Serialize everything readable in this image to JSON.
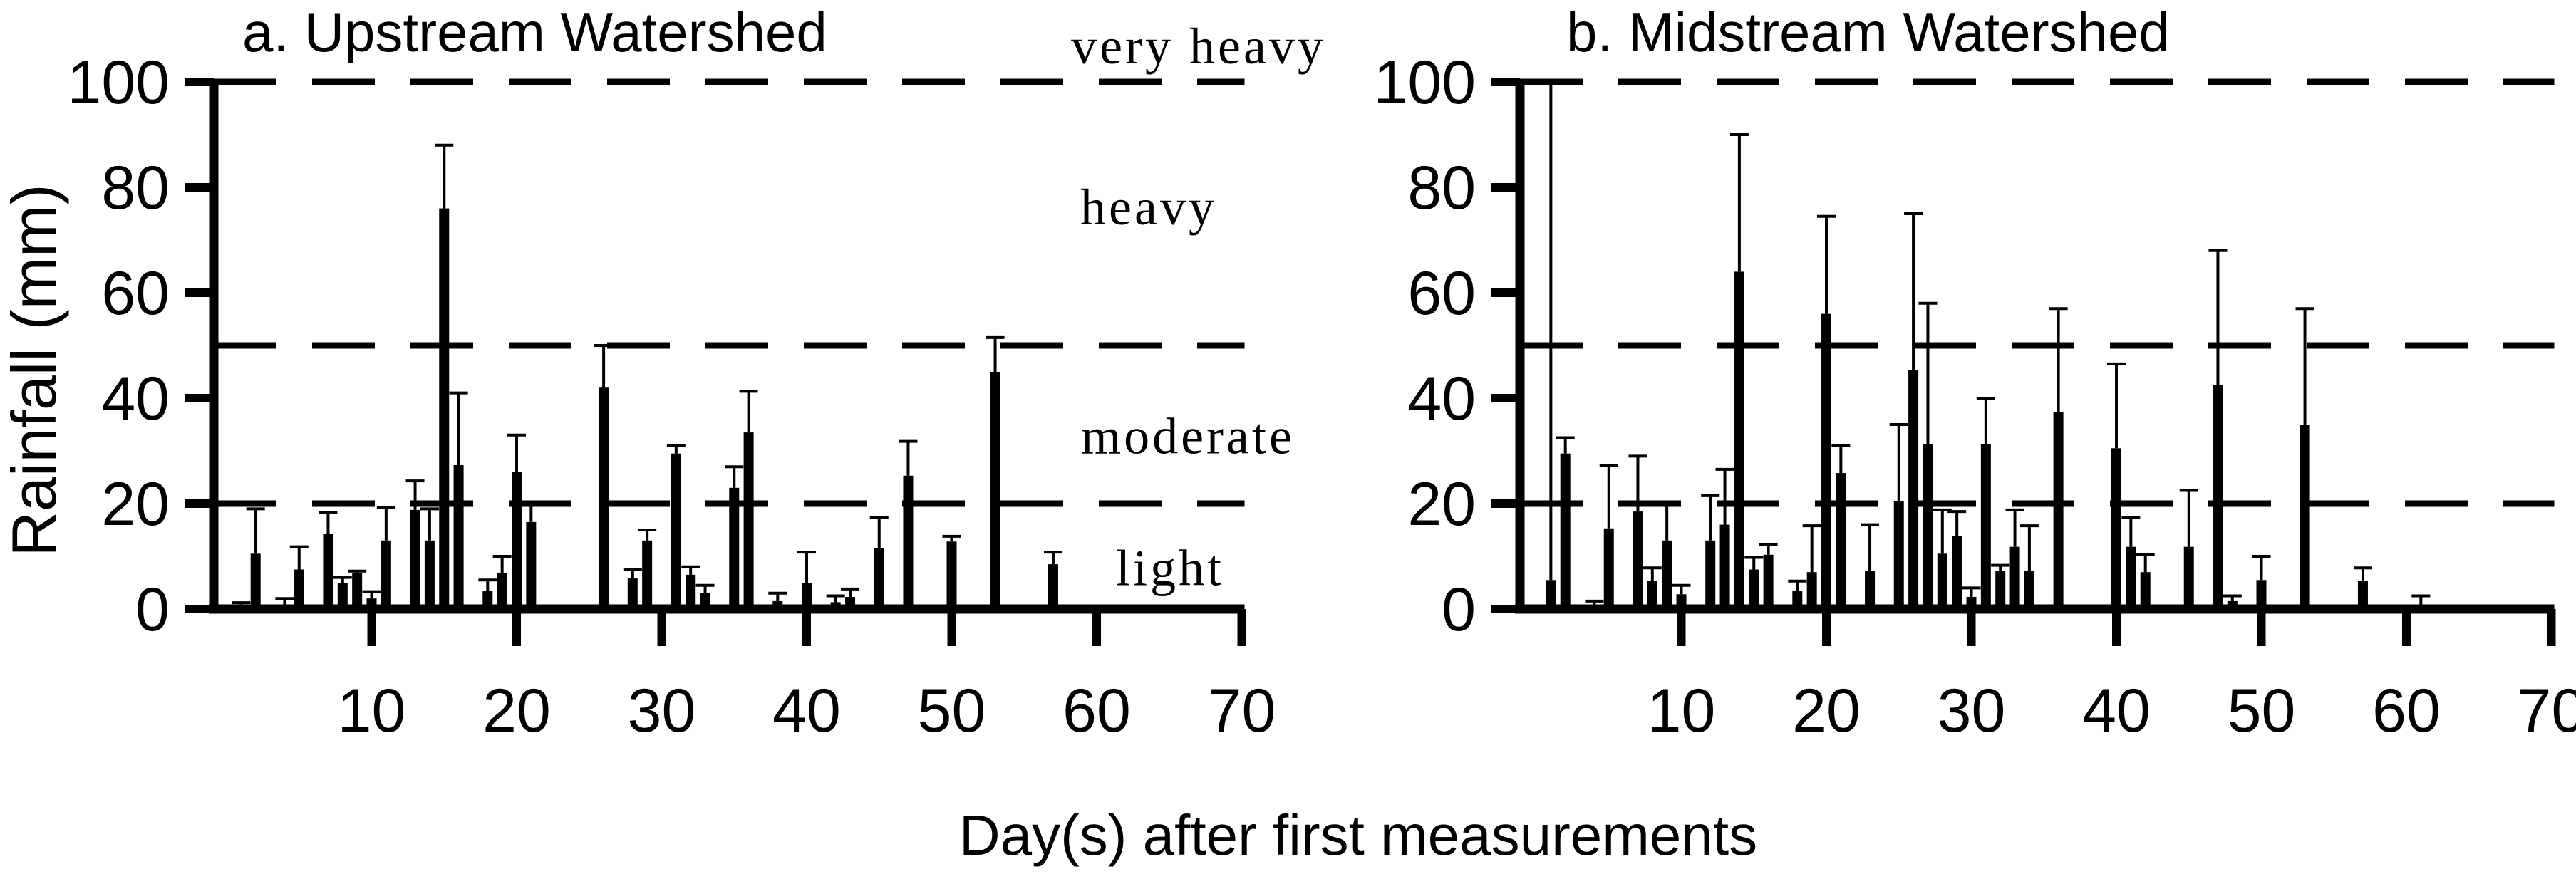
{
  "figure": {
    "y_axis_label": "Rainfall (mm)",
    "x_axis_label": "Day(s) after first measurements",
    "ink_color": "#000000",
    "background_color": "#ffffff",
    "intensity_labels": [
      {
        "text": "very heavy",
        "mm": 103.5
      },
      {
        "text": "heavy",
        "mm": 73
      },
      {
        "text": "moderate",
        "mm": 29.5
      },
      {
        "text": "light",
        "mm": 4.5
      }
    ]
  },
  "chart_data": [
    {
      "type": "bar",
      "panel": "a",
      "title": "a. Upstream Watershed",
      "ylabel": "Rainfall (mm)",
      "xlabel": "Day(s) after first measurements",
      "ylim": [
        0,
        100
      ],
      "xlim": [
        0,
        71
      ],
      "grid": false,
      "legend": "none",
      "y_ticks": [
        0,
        20,
        40,
        60,
        80,
        100
      ],
      "x_ticks": [
        10,
        20,
        30,
        40,
        50,
        60,
        70
      ],
      "threshold_lines_mm": [
        20,
        50,
        100
      ],
      "bars": [
        {
          "day": 1,
          "value": 0.5,
          "err_top": 1.2
        },
        {
          "day": 2,
          "value": 10.5,
          "err_top": 19
        },
        {
          "day": 4,
          "value": 0.8,
          "err_top": 2
        },
        {
          "day": 5,
          "value": 7.5,
          "err_top": 11.8
        },
        {
          "day": 7,
          "value": 14.3,
          "err_top": 18.3
        },
        {
          "day": 8,
          "value": 5,
          "err_top": 6
        },
        {
          "day": 9,
          "value": 6.8,
          "err_top": 7.2
        },
        {
          "day": 10,
          "value": 2,
          "err_top": 3.3
        },
        {
          "day": 11,
          "value": 13,
          "err_top": 19.3
        },
        {
          "day": 13,
          "value": 18.8,
          "err_top": 24.3
        },
        {
          "day": 14,
          "value": 13,
          "err_top": 19
        },
        {
          "day": 15,
          "value": 76,
          "err_top": 88
        },
        {
          "day": 16,
          "value": 27.3,
          "err_top": 41
        },
        {
          "day": 18,
          "value": 3.5,
          "err_top": 5.5
        },
        {
          "day": 19,
          "value": 6.8,
          "err_top": 10
        },
        {
          "day": 20,
          "value": 26,
          "err_top": 33
        },
        {
          "day": 21,
          "value": 16.5,
          "err_top": 20
        },
        {
          "day": 26,
          "value": 42,
          "err_top": 50
        },
        {
          "day": 28,
          "value": 5.8,
          "err_top": 7.5
        },
        {
          "day": 29,
          "value": 13,
          "err_top": 15
        },
        {
          "day": 31,
          "value": 29.5,
          "err_top": 31
        },
        {
          "day": 32,
          "value": 6.5,
          "err_top": 8
        },
        {
          "day": 33,
          "value": 3,
          "err_top": 4.5
        },
        {
          "day": 35,
          "value": 23,
          "err_top": 27
        },
        {
          "day": 36,
          "value": 33.5,
          "err_top": 41.3
        },
        {
          "day": 38,
          "value": 1.5,
          "err_top": 3
        },
        {
          "day": 40,
          "value": 5,
          "err_top": 10.8
        },
        {
          "day": 42,
          "value": 1.3,
          "err_top": 2.5
        },
        {
          "day": 43,
          "value": 2.3,
          "err_top": 3.8
        },
        {
          "day": 45,
          "value": 11.5,
          "err_top": 17.3
        },
        {
          "day": 47,
          "value": 25.3,
          "err_top": 31.8
        },
        {
          "day": 50,
          "value": 12.8,
          "err_top": 13.8
        },
        {
          "day": 53,
          "value": 45,
          "err_top": 51.5
        },
        {
          "day": 57,
          "value": 8.5,
          "err_top": 10.8
        }
      ]
    },
    {
      "type": "bar",
      "panel": "b",
      "title": "b. Midstream Watershed",
      "ylabel": "Rainfall (mm)",
      "xlabel": "Day(s) after first measurements",
      "ylim": [
        0,
        100
      ],
      "xlim": [
        0,
        71
      ],
      "grid": false,
      "legend": "none",
      "y_ticks": [
        0,
        20,
        40,
        60,
        80,
        100
      ],
      "x_ticks": [
        10,
        20,
        30,
        40,
        50,
        60,
        70
      ],
      "threshold_lines_mm": [
        20,
        50,
        100
      ],
      "bars": [
        {
          "day": 1,
          "value": 5.5,
          "err_top": 100
        },
        {
          "day": 2,
          "value": 29.5,
          "err_top": 32.5
        },
        {
          "day": 4,
          "value": 0.4,
          "err_top": 1.5
        },
        {
          "day": 5,
          "value": 15.3,
          "err_top": 27.3
        },
        {
          "day": 7,
          "value": 18.5,
          "err_top": 29
        },
        {
          "day": 8,
          "value": 5.3,
          "err_top": 7.8
        },
        {
          "day": 9,
          "value": 13,
          "err_top": 20.3
        },
        {
          "day": 10,
          "value": 2.8,
          "err_top": 4.5
        },
        {
          "day": 12,
          "value": 13,
          "err_top": 21.5
        },
        {
          "day": 13,
          "value": 16,
          "err_top": 26.5
        },
        {
          "day": 14,
          "value": 64,
          "err_top": 90
        },
        {
          "day": 15,
          "value": 7.5,
          "err_top": 9.8
        },
        {
          "day": 16,
          "value": 10.3,
          "err_top": 12.3
        },
        {
          "day": 18,
          "value": 3.5,
          "err_top": 5.3
        },
        {
          "day": 19,
          "value": 7,
          "err_top": 15.8
        },
        {
          "day": 20,
          "value": 56,
          "err_top": 74.5
        },
        {
          "day": 21,
          "value": 25.8,
          "err_top": 31
        },
        {
          "day": 23,
          "value": 7.3,
          "err_top": 16
        },
        {
          "day": 25,
          "value": 20.5,
          "err_top": 35
        },
        {
          "day": 26,
          "value": 45.3,
          "err_top": 75
        },
        {
          "day": 27,
          "value": 31.3,
          "err_top": 58
        },
        {
          "day": 28,
          "value": 10.5,
          "err_top": 18.8
        },
        {
          "day": 29,
          "value": 13.8,
          "err_top": 18.5
        },
        {
          "day": 30,
          "value": 2.3,
          "err_top": 4
        },
        {
          "day": 31,
          "value": 31.3,
          "err_top": 40
        },
        {
          "day": 32,
          "value": 7.3,
          "err_top": 8.3
        },
        {
          "day": 33,
          "value": 11.8,
          "err_top": 18.8
        },
        {
          "day": 34,
          "value": 7.3,
          "err_top": 15.8
        },
        {
          "day": 36,
          "value": 37.3,
          "err_top": 57
        },
        {
          "day": 40,
          "value": 30.5,
          "err_top": 46.5
        },
        {
          "day": 41,
          "value": 11.8,
          "err_top": 17.3
        },
        {
          "day": 42,
          "value": 7,
          "err_top": 10.3
        },
        {
          "day": 45,
          "value": 11.8,
          "err_top": 22.5
        },
        {
          "day": 47,
          "value": 42.5,
          "err_top": 68
        },
        {
          "day": 48,
          "value": 1.5,
          "err_top": 2.5
        },
        {
          "day": 50,
          "value": 5.5,
          "err_top": 10
        },
        {
          "day": 53,
          "value": 35,
          "err_top": 57
        },
        {
          "day": 57,
          "value": 5.3,
          "err_top": 7.8
        },
        {
          "day": 61,
          "value": 0.3,
          "err_top": 2.5
        }
      ]
    }
  ]
}
